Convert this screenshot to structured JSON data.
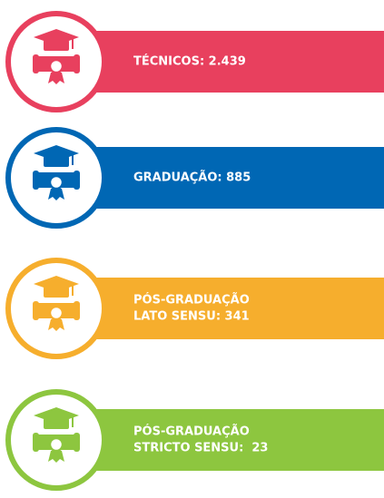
{
  "items": [
    {
      "lines": [
        "TÉCNICOS: 2.439"
      ]
    },
    {
      "lines": [
        "GRADUAÇÃO: 885"
      ]
    },
    {
      "lines": [
        "PÓS-GRADUAÇÃO",
        "LATO SENSU: 341"
      ]
    },
    {
      "lines": [
        "PÓS-GRADUAÇÃO",
        "STRICTO SENSU:  23"
      ]
    }
  ]
}
